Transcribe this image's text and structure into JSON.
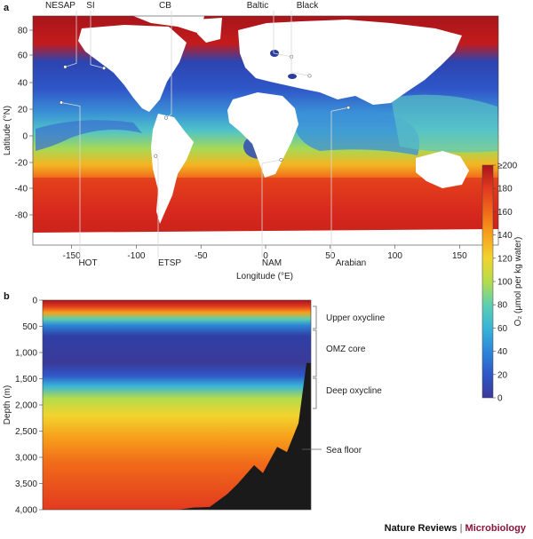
{
  "panel_a": {
    "letter": "a",
    "ylabel": "Latitude (°N)",
    "xlabel": "Longitude (°E)",
    "top_sites": [
      "NESAP",
      "SI",
      "CB",
      "Baltic",
      "Black"
    ],
    "bottom_sites": [
      "HOT",
      "ETSP",
      "NAM",
      "Arabian"
    ]
  },
  "panel_b": {
    "letter": "b",
    "ylabel": "Depth (m)",
    "zones": [
      "Upper oxycline",
      "OMZ core",
      "Deep oxycline"
    ],
    "sea_floor_label": "Sea floor"
  },
  "colorbar": {
    "title": "O₂ (μmol per kg water)",
    "min": 0,
    "max": 200,
    "ticks": [
      "0",
      "20",
      "40",
      "60",
      "80",
      "100",
      "120",
      "140",
      "160",
      "180",
      "≥200"
    ],
    "stops": [
      "#3b3a98",
      "#2f57c8",
      "#2d86d8",
      "#38b5d8",
      "#5ccfb0",
      "#b5dc4a",
      "#f1d42f",
      "#f7a21b",
      "#f16a19",
      "#e23a1f",
      "#a8151b"
    ]
  },
  "footer": {
    "publisher": "Nature Reviews",
    "separator": "|",
    "journal": "Microbiology"
  },
  "chart_data": [
    {
      "type": "heatmap",
      "panel": "a",
      "variable": "O₂ (μmol per kg water)",
      "xlabel": "Longitude (°E)",
      "ylabel": "Latitude (°N)",
      "xticks": [
        -150,
        -100,
        -50,
        0,
        50,
        100,
        150
      ],
      "yticks": [
        80,
        60,
        40,
        20,
        0,
        -20,
        -40,
        -80
      ],
      "xlim": [
        -180,
        180
      ],
      "ylim": [
        -90,
        90
      ],
      "sites": [
        {
          "name": "NESAP",
          "lon": -155,
          "lat": 50
        },
        {
          "name": "SI",
          "lon": -125,
          "lat": 49
        },
        {
          "name": "CB",
          "lon": -77,
          "lat": 10
        },
        {
          "name": "Baltic",
          "lon": 20,
          "lat": 58
        },
        {
          "name": "Black",
          "lon": 34,
          "lat": 43
        },
        {
          "name": "HOT",
          "lon": -158,
          "lat": 22
        },
        {
          "name": "ETSP",
          "lon": -85,
          "lat": -20
        },
        {
          "name": "NAM",
          "lon": 12,
          "lat": -23
        },
        {
          "name": "Arabian",
          "lon": 64,
          "lat": 18
        }
      ]
    },
    {
      "type": "heatmap",
      "panel": "b",
      "variable": "O₂ (μmol per kg water)",
      "ylabel": "Depth (m)",
      "yticks": [
        0,
        500,
        1000,
        1500,
        2000,
        2500,
        3000,
        3500,
        4000
      ],
      "ylim": [
        4000,
        0
      ],
      "profile_depths": [
        0,
        150,
        400,
        600,
        900,
        1200,
        1500,
        1700,
        2100,
        2600,
        3200,
        4000
      ],
      "profile_o2": [
        200,
        180,
        60,
        20,
        10,
        30,
        80,
        120,
        145,
        165,
        180,
        185
      ],
      "sea_floor_depth": [
        4000,
        4000,
        3960,
        3950,
        3700,
        3500,
        3150,
        3300,
        2800,
        2900,
        2350,
        1200
      ]
    }
  ]
}
